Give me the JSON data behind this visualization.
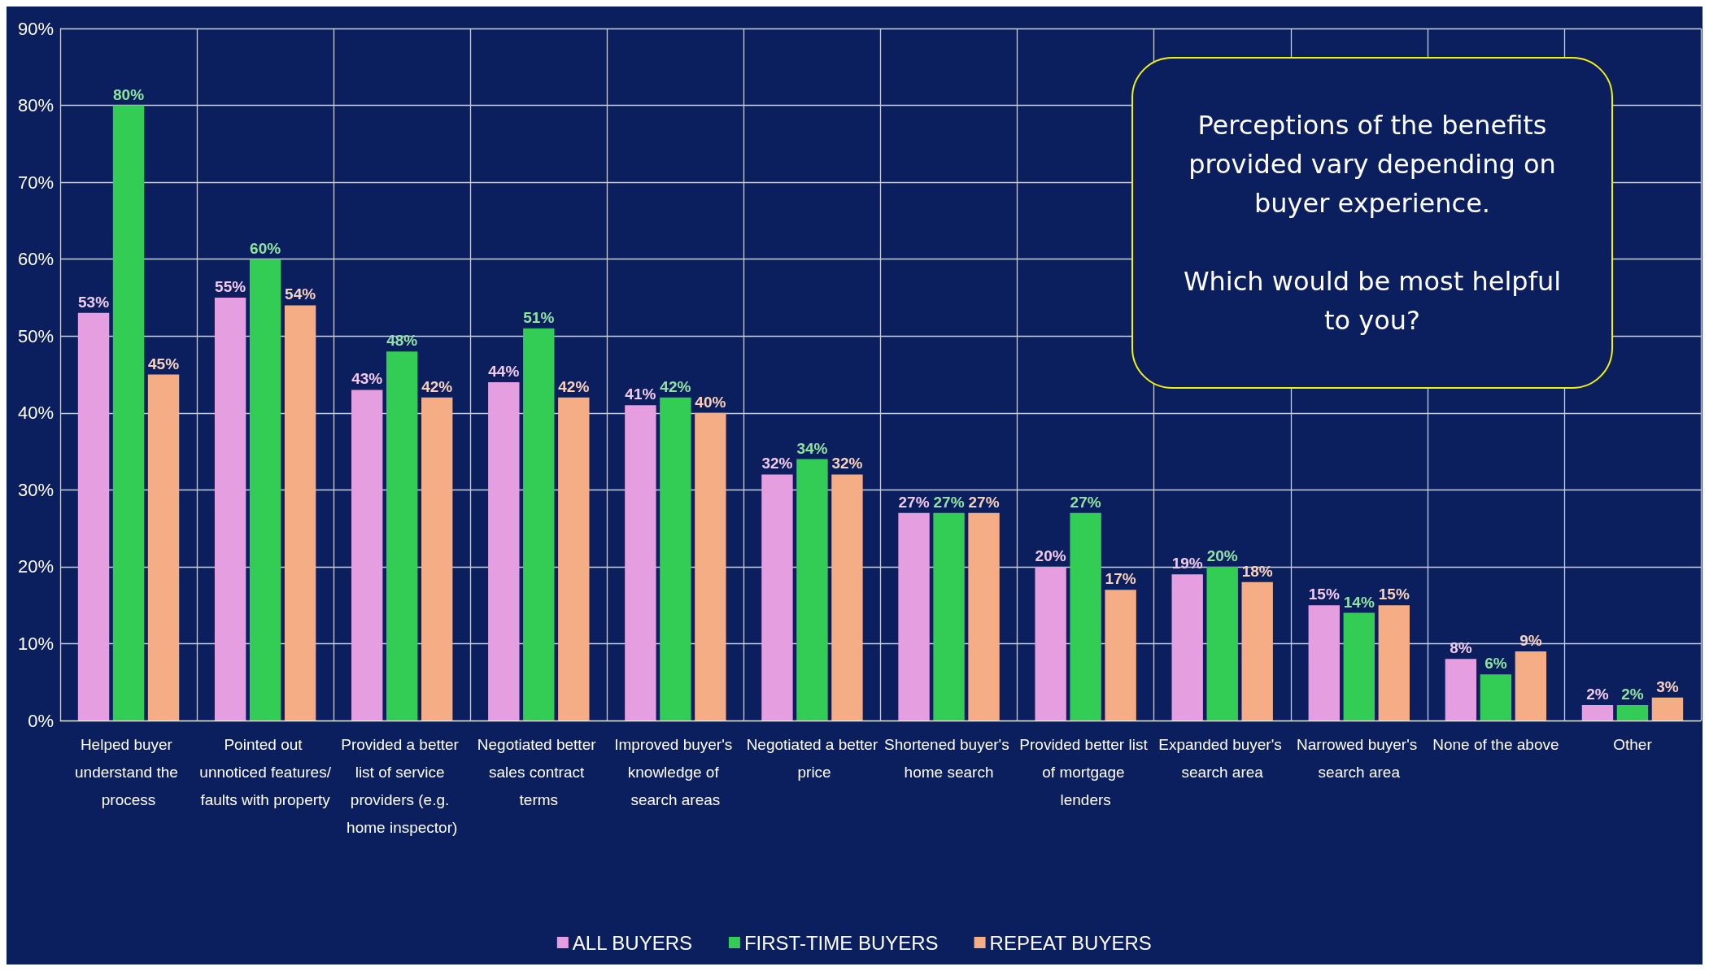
{
  "chart_data": {
    "type": "bar",
    "categories": [
      "Helped buyer understand the process",
      "Pointed out unnoticed features/faults with property",
      "Provided a better list of service providers (e.g. home inspector)",
      "Negotiated better sales contract terms",
      "Improved buyer's knowledge of search areas",
      "Negotiated a better price",
      "Shortened buyer's home search",
      "Provided better list of mortgage lenders",
      "Expanded buyer's search area",
      "Narrowed buyer's search area",
      "None of the above",
      "Other"
    ],
    "series": [
      {
        "name": "ALL BUYERS",
        "color": "#e59fe0",
        "values": [
          53,
          55,
          43,
          44,
          41,
          32,
          27,
          20,
          19,
          15,
          8,
          2
        ],
        "value_labels": [
          "53%",
          "55%",
          "43%",
          "44%",
          "41%",
          "32%",
          "27%",
          "20%",
          "19%",
          "15%",
          "8%",
          "2%"
        ]
      },
      {
        "name": "FIRST-TIME BUYERS",
        "color": "#33cc55",
        "values": [
          80,
          60,
          48,
          51,
          42,
          34,
          27,
          27,
          20,
          14,
          6,
          2
        ],
        "value_labels": [
          "80%",
          "60%",
          "48%",
          "51%",
          "42%",
          "34%",
          "27%",
          "27%",
          "20%",
          "14%",
          "6%",
          "2%"
        ]
      },
      {
        "name": "REPEAT BUYERS",
        "color": "#f4ad85",
        "values": [
          45,
          54,
          42,
          42,
          40,
          32,
          27,
          17,
          18,
          15,
          9,
          3
        ],
        "value_labels": [
          "45%",
          "54%",
          "42%",
          "42%",
          "40%",
          "32%",
          "27%",
          "17%",
          "18%",
          "15%",
          "9%",
          "3%"
        ]
      }
    ],
    "ylim": [
      0,
      90
    ],
    "yticks": [
      {
        "value": 0,
        "label": "0%"
      },
      {
        "value": 10,
        "label": "10%"
      },
      {
        "value": 20,
        "label": "20%"
      },
      {
        "value": 30,
        "label": "30%"
      },
      {
        "value": 40,
        "label": "40%"
      },
      {
        "value": 50,
        "label": "50%"
      },
      {
        "value": 60,
        "label": "60%"
      },
      {
        "value": 70,
        "label": "70%"
      },
      {
        "value": 80,
        "label": "80%"
      },
      {
        "value": 90,
        "label": "90%"
      }
    ],
    "grid": true,
    "legend": "bottom",
    "annotations": [
      "Perceptions of the benefits provided vary depending on buyer experience.\n\nWhich would be most helpful to you?"
    ]
  }
}
